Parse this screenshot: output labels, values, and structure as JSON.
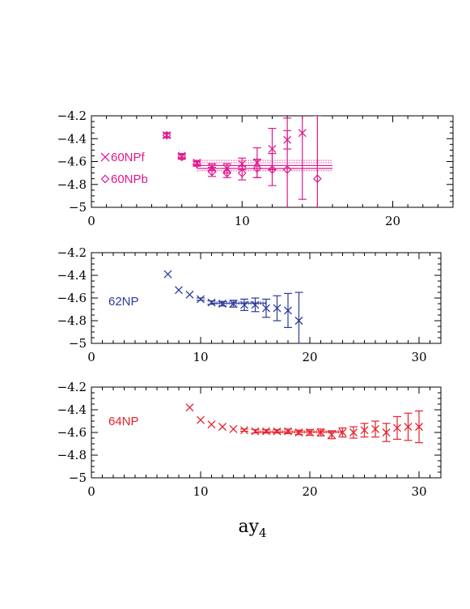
{
  "figure": {
    "xlabel": "ay",
    "xlabel_sub": "4"
  },
  "chart_data": [
    {
      "type": "scatter",
      "xlim": [
        0,
        24
      ],
      "ylim": [
        -5,
        -4.2
      ],
      "xticks": [
        0,
        10,
        20
      ],
      "yticks": [
        -4.2,
        -4.4,
        -4.6,
        -4.8,
        -5
      ],
      "color": "#e0188c",
      "legend": [
        {
          "marker": "cross",
          "label": "60NPf"
        },
        {
          "marker": "diamond",
          "label": "60NPb"
        }
      ],
      "series": [
        {
          "name": "60NPf",
          "marker": "cross",
          "points": [
            {
              "x": 5,
              "y": -4.37,
              "err": 0.02
            },
            {
              "x": 6,
              "y": -4.55,
              "err": 0.02
            },
            {
              "x": 7,
              "y": -4.61,
              "err": 0.02
            },
            {
              "x": 8,
              "y": -4.65,
              "err": 0.03
            },
            {
              "x": 9,
              "y": -4.66,
              "err": 0.04
            },
            {
              "x": 10,
              "y": -4.62,
              "err": 0.05
            },
            {
              "x": 11,
              "y": -4.61,
              "err": 0.13
            },
            {
              "x": 12,
              "y": -4.49,
              "err": 0.18
            },
            {
              "x": 13,
              "y": -4.41,
              "err": 0.08
            },
            {
              "x": 14,
              "y": -4.35,
              "err": 0.58
            }
          ]
        },
        {
          "name": "60NPb",
          "marker": "diamond",
          "points": [
            {
              "x": 5,
              "y": -4.37,
              "err": 0.02
            },
            {
              "x": 6,
              "y": -4.56,
              "err": 0.02
            },
            {
              "x": 7,
              "y": -4.62,
              "err": 0.02
            },
            {
              "x": 8,
              "y": -4.69,
              "err": 0.04
            },
            {
              "x": 9,
              "y": -4.7,
              "err": 0.04
            },
            {
              "x": 10,
              "y": -4.7,
              "err": 0.06
            },
            {
              "x": 11,
              "y": -4.66,
              "err": 0.08
            },
            {
              "x": 12,
              "y": -4.67,
              "err": 0.14
            },
            {
              "x": 13,
              "y": -4.67,
              "err": 0.45
            },
            {
              "x": 15,
              "y": -4.75,
              "err": 0.55
            }
          ]
        }
      ],
      "fits": [
        {
          "x_range": [
            7,
            16
          ],
          "value": -4.635,
          "band": [
            -4.61,
            -4.66
          ]
        },
        {
          "x_range": [
            7,
            16
          ],
          "value": -4.66,
          "band": [
            -4.59,
            -4.68
          ]
        }
      ]
    },
    {
      "type": "scatter",
      "xlim": [
        0,
        32
      ],
      "ylim": [
        -5,
        -4.2
      ],
      "xticks": [
        0,
        10,
        20,
        30
      ],
      "yticks": [
        -4.2,
        -4.4,
        -4.6,
        -4.8,
        -5
      ],
      "color": "#2b3a9a",
      "legend": [
        {
          "marker": "none",
          "label": "62NP"
        }
      ],
      "series": [
        {
          "name": "62NP",
          "marker": "cross",
          "points": [
            {
              "x": 7,
              "y": -4.39,
              "err": 0.0
            },
            {
              "x": 8,
              "y": -4.53,
              "err": 0.0
            },
            {
              "x": 9,
              "y": -4.57,
              "err": 0.0
            },
            {
              "x": 10,
              "y": -4.61,
              "err": 0.01
            },
            {
              "x": 11,
              "y": -4.64,
              "err": 0.015
            },
            {
              "x": 12,
              "y": -4.65,
              "err": 0.02
            },
            {
              "x": 13,
              "y": -4.65,
              "err": 0.03
            },
            {
              "x": 14,
              "y": -4.66,
              "err": 0.05
            },
            {
              "x": 15,
              "y": -4.66,
              "err": 0.06
            },
            {
              "x": 16,
              "y": -4.69,
              "err": 0.08
            },
            {
              "x": 17,
              "y": -4.69,
              "err": 0.11
            },
            {
              "x": 18,
              "y": -4.71,
              "err": 0.15
            },
            {
              "x": 19,
              "y": -4.8,
              "err": 0.25
            }
          ]
        }
      ],
      "fits": [
        {
          "x_range": [
            11,
            16
          ],
          "value": -4.645,
          "band": [
            -4.635,
            -4.655
          ]
        }
      ]
    },
    {
      "type": "scatter",
      "xlim": [
        0,
        32
      ],
      "ylim": [
        -5,
        -4.2
      ],
      "xticks": [
        0,
        10,
        20,
        30
      ],
      "yticks": [
        -4.2,
        -4.4,
        -4.6,
        -4.8,
        -5
      ],
      "color": "#e8202a",
      "legend": [
        {
          "marker": "none",
          "label": "64NP"
        }
      ],
      "series": [
        {
          "name": "64NP",
          "marker": "cross",
          "points": [
            {
              "x": 9,
              "y": -4.38,
              "err": 0.0
            },
            {
              "x": 10,
              "y": -4.49,
              "err": 0.0
            },
            {
              "x": 11,
              "y": -4.53,
              "err": 0.0
            },
            {
              "x": 12,
              "y": -4.55,
              "err": 0.0
            },
            {
              "x": 13,
              "y": -4.57,
              "err": 0.0
            },
            {
              "x": 14,
              "y": -4.58,
              "err": 0.01
            },
            {
              "x": 15,
              "y": -4.59,
              "err": 0.015
            },
            {
              "x": 16,
              "y": -4.59,
              "err": 0.015
            },
            {
              "x": 17,
              "y": -4.59,
              "err": 0.015
            },
            {
              "x": 18,
              "y": -4.59,
              "err": 0.02
            },
            {
              "x": 19,
              "y": -4.6,
              "err": 0.02
            },
            {
              "x": 20,
              "y": -4.6,
              "err": 0.025
            },
            {
              "x": 21,
              "y": -4.6,
              "err": 0.03
            },
            {
              "x": 22,
              "y": -4.62,
              "err": 0.035
            },
            {
              "x": 23,
              "y": -4.6,
              "err": 0.04
            },
            {
              "x": 24,
              "y": -4.6,
              "err": 0.05
            },
            {
              "x": 25,
              "y": -4.58,
              "err": 0.06
            },
            {
              "x": 26,
              "y": -4.57,
              "err": 0.07
            },
            {
              "x": 27,
              "y": -4.6,
              "err": 0.08
            },
            {
              "x": 28,
              "y": -4.56,
              "err": 0.1
            },
            {
              "x": 29,
              "y": -4.55,
              "err": 0.12
            },
            {
              "x": 30,
              "y": -4.55,
              "err": 0.14
            }
          ]
        }
      ],
      "fits": [
        {
          "x_range": [
            15,
            23
          ],
          "value": -4.595,
          "band": [
            -4.585,
            -4.605
          ]
        }
      ]
    }
  ]
}
